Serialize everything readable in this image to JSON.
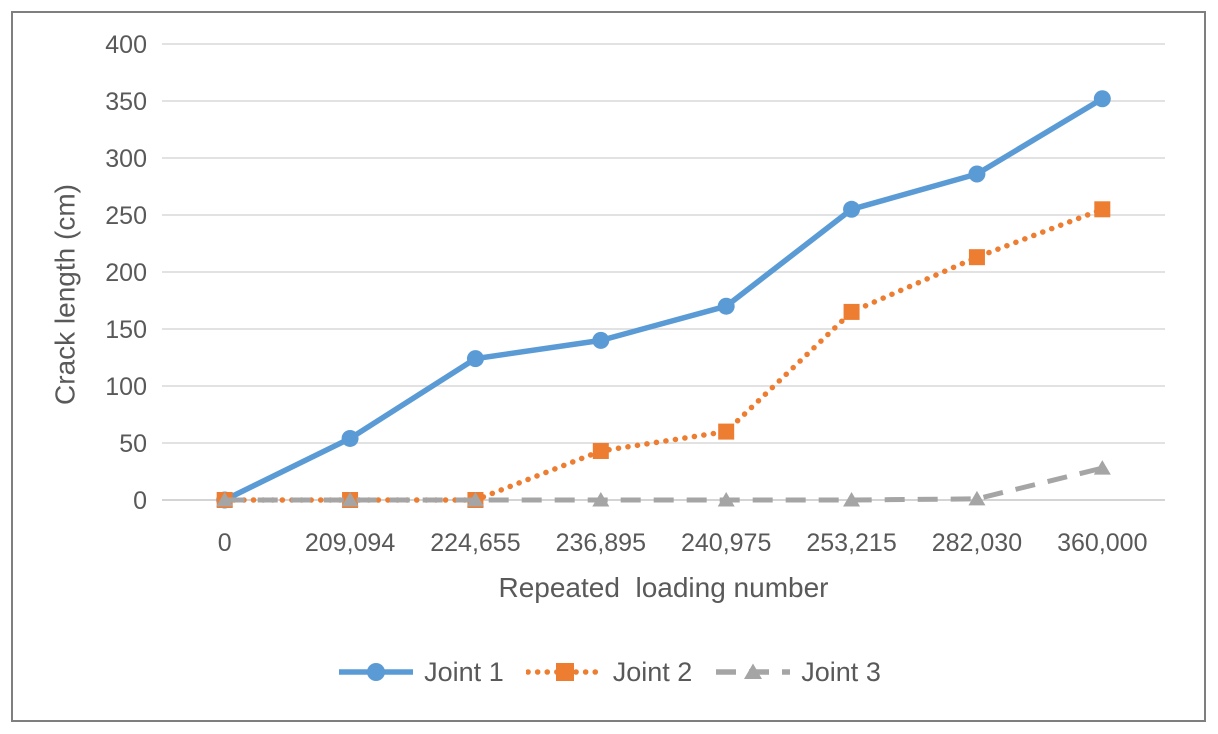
{
  "frame": {
    "border_color": "#7f7f7f",
    "background_color": "#ffffff"
  },
  "chart_data": {
    "type": "line",
    "title": "",
    "xlabel": "Repeated  loading number",
    "ylabel": "Crack length (cm)",
    "categories": [
      "0",
      "209,094",
      "224,655",
      "236,895",
      "240,975",
      "253,215",
      "282,030",
      "360,000"
    ],
    "x_values": [
      0,
      209094,
      224655,
      236895,
      240975,
      253215,
      282030,
      360000
    ],
    "ylim": [
      0,
      400
    ],
    "ytick_step": 50,
    "ytick_labels": [
      "0",
      "50",
      "100",
      "150",
      "200",
      "250",
      "300",
      "350",
      "400"
    ],
    "grid": true,
    "legend_position": "bottom-center",
    "axis_text_color": "#595959",
    "gridline_color": "#d9d9d9",
    "axis_line_color": "#c6c6c6",
    "series": [
      {
        "name": "Joint 1",
        "color": "#5b9bd5",
        "marker": "circle",
        "line_style": "solid",
        "values": [
          0,
          54,
          124,
          140,
          170,
          255,
          286,
          352
        ]
      },
      {
        "name": "Joint 2",
        "color": "#ed7d31",
        "marker": "square",
        "line_style": "dotted",
        "values": [
          0,
          0,
          0,
          43,
          60,
          165,
          213,
          255
        ]
      },
      {
        "name": "Joint 3",
        "color": "#a5a5a5",
        "marker": "triangle",
        "line_style": "dashed",
        "values": [
          0,
          0,
          0,
          0,
          0,
          0,
          1,
          28
        ]
      }
    ]
  }
}
